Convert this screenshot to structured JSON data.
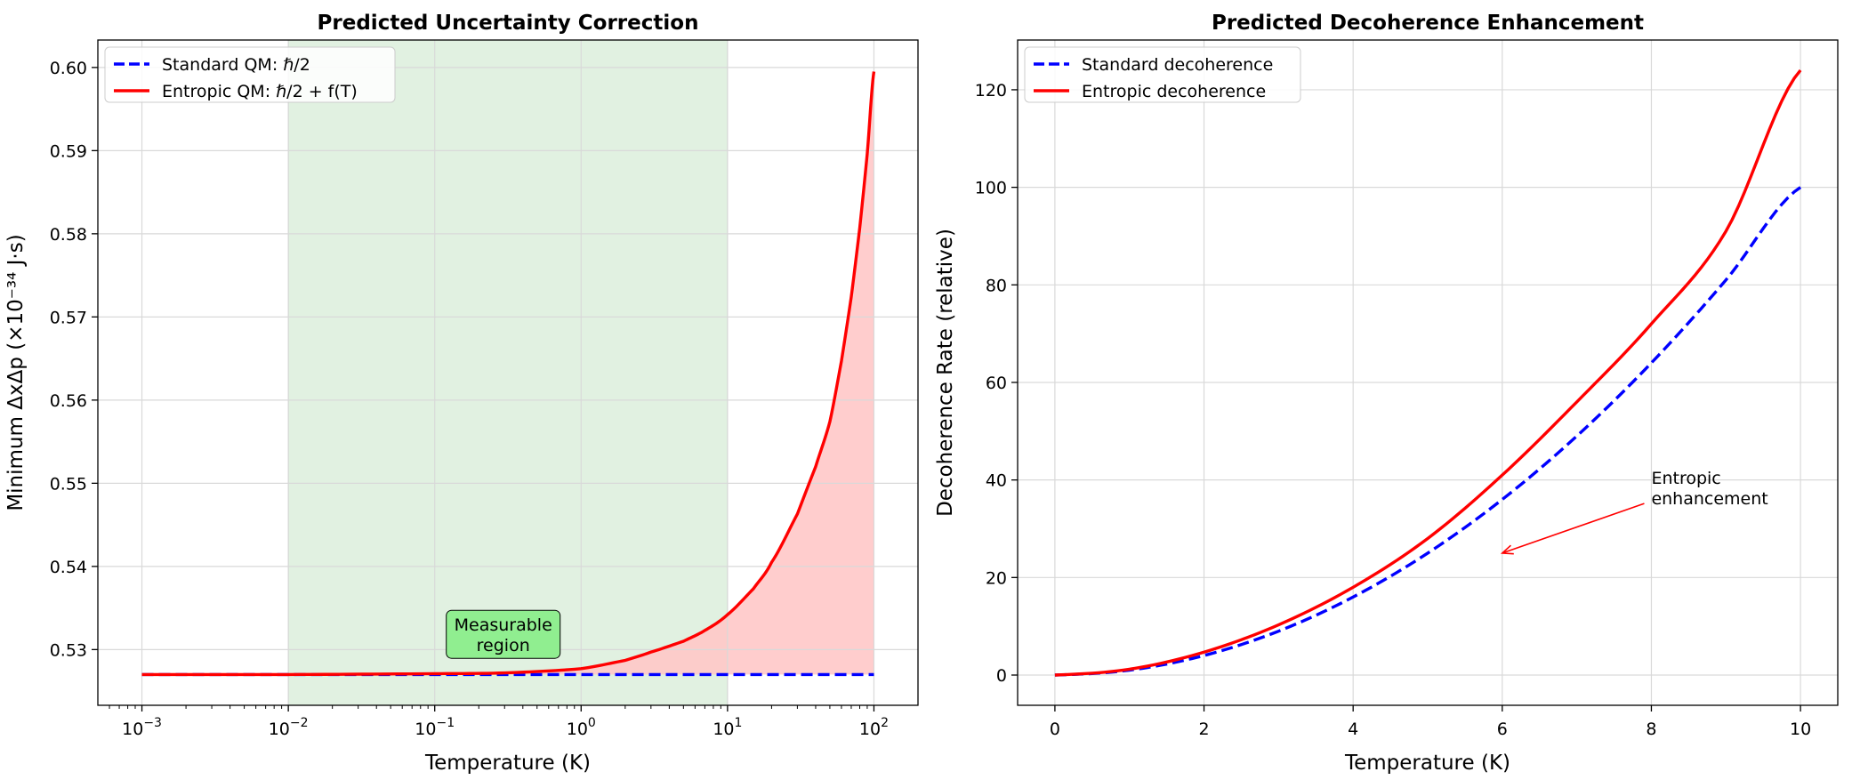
{
  "colors": {
    "standard": "#0000ff",
    "entropic": "#ff0000",
    "shaded_region": "#c8e6c9",
    "fill_between": "#ffc8c8",
    "annotation_box": "#90ee90",
    "grid": "#e6e6e6"
  },
  "chart_data": [
    {
      "type": "line",
      "title": "Predicted Uncertainty Correction",
      "xlabel": "Temperature (K)",
      "ylabel": "Minimum ΔxΔp (×10⁻³⁴ J·s)",
      "xscale": "log",
      "xlim": [
        0.0005,
        200
      ],
      "ylim": [
        0.5233,
        0.6033
      ],
      "xticks": [
        0.001,
        0.01,
        0.1,
        1,
        10,
        100
      ],
      "xtick_labels": [
        {
          "base": "10",
          "exp": "−3"
        },
        {
          "base": "10",
          "exp": "−2"
        },
        {
          "base": "10",
          "exp": "−1"
        },
        {
          "base": "10",
          "exp": "0"
        },
        {
          "base": "10",
          "exp": "1"
        },
        {
          "base": "10",
          "exp": "2"
        }
      ],
      "yticks": [
        0.53,
        0.54,
        0.55,
        0.56,
        0.57,
        0.58,
        0.59,
        0.6
      ],
      "ytick_labels": [
        "0.53",
        "0.54",
        "0.55",
        "0.56",
        "0.57",
        "0.58",
        "0.59",
        "0.60"
      ],
      "grid": true,
      "legend_position": "upper-left",
      "series": [
        {
          "name": "Standard QM: ℏ/2",
          "style": "dashed",
          "x": [
            0.001,
            0.01,
            0.1,
            1,
            10,
            100
          ],
          "y": [
            0.527,
            0.527,
            0.527,
            0.527,
            0.527,
            0.527
          ]
        },
        {
          "name": "Entropic QM: ℏ/2 + f(T)",
          "style": "solid",
          "x": [
            0.001,
            0.01,
            0.1,
            0.3,
            1,
            2,
            3,
            5,
            7,
            10,
            15,
            20,
            30,
            40,
            50,
            60,
            70,
            80,
            90,
            100
          ],
          "y": [
            0.527,
            0.527,
            0.5271,
            0.5272,
            0.5277,
            0.5287,
            0.5297,
            0.531,
            0.5323,
            0.5342,
            0.5373,
            0.5405,
            0.5463,
            0.552,
            0.5574,
            0.5647,
            0.5724,
            0.5807,
            0.5896,
            0.5995
          ]
        }
      ],
      "shaded_x_range": [
        0.01,
        10
      ],
      "fill_between": true,
      "annotations": [
        {
          "text_lines": [
            "Measurable",
            "region"
          ],
          "x": 0.1,
          "y": 0.5313
        }
      ]
    },
    {
      "type": "line",
      "title": "Predicted Decoherence Enhancement",
      "xlabel": "Temperature (K)",
      "ylabel": "Decoherence Rate (relative)",
      "xlim": [
        -0.5,
        10.5
      ],
      "ylim": [
        -6.2,
        130.2
      ],
      "xticks": [
        0,
        2,
        4,
        6,
        8,
        10
      ],
      "xtick_labels": [
        "0",
        "2",
        "4",
        "6",
        "8",
        "10"
      ],
      "yticks": [
        0,
        20,
        40,
        60,
        80,
        100,
        120
      ],
      "ytick_labels": [
        "0",
        "20",
        "40",
        "60",
        "80",
        "100",
        "120"
      ],
      "grid": true,
      "legend_position": "upper-left",
      "series": [
        {
          "name": "Standard decoherence",
          "style": "dashed",
          "x": [
            0,
            1,
            2,
            3,
            4,
            5,
            6,
            7,
            8,
            9,
            10
          ],
          "y": [
            0,
            1,
            4,
            9,
            16,
            25,
            36,
            49,
            64,
            81,
            100
          ]
        },
        {
          "name": "Entropic decoherence",
          "style": "solid",
          "x": [
            0,
            1,
            2,
            3,
            4,
            5,
            6,
            7,
            8,
            9,
            10
          ],
          "y": [
            0,
            1.2,
            4.7,
            10.3,
            18,
            28,
            41,
            56,
            72,
            91,
            124
          ]
        }
      ],
      "annotations": [
        {
          "text_lines": [
            "Entropic",
            "enhancement"
          ],
          "text_x": 8,
          "text_y": 37,
          "arrow_x": 6,
          "arrow_y": 25
        }
      ]
    }
  ]
}
